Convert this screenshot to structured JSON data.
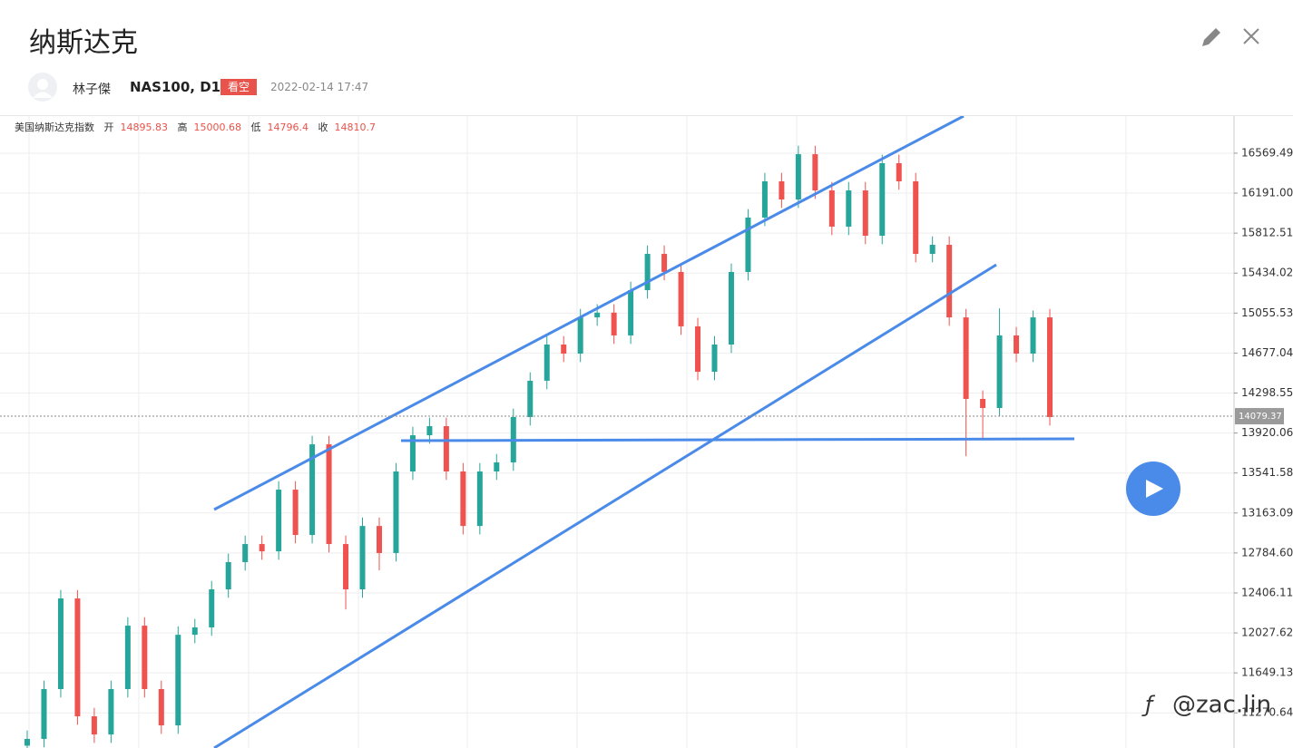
{
  "header": {
    "title": "纳斯达克",
    "author": "林子傑",
    "symbol": "NAS100, D1",
    "badge": "看空",
    "timestamp": "2022-02-14 17:47"
  },
  "legend": {
    "name": "美国纳斯达克指数",
    "labels": [
      "开",
      "高",
      "低",
      "收"
    ],
    "values": [
      14895.83,
      15000.68,
      14796.4,
      14810.7
    ]
  },
  "chart_data": {
    "type": "candlestick",
    "ylim": [
      10938,
      16921
    ],
    "yticks": [
      16569.49,
      {
        "value": 16191.0,
        "label": "16191.00"
      },
      15812.51,
      15434.02,
      15055.53,
      14677.04,
      14298.55,
      13920.06,
      13541.58,
      13163.09,
      {
        "value": 12784.6,
        "label": "12784.60"
      },
      12406.11,
      12027.62,
      11649.13,
      11270.64
    ],
    "grid": true,
    "up_color": "#26a69a",
    "down_color": "#ef5350",
    "last_price": 14079.37,
    "open": [
      10960,
      11024,
      11496,
      12354,
      11238,
      11066,
      11496,
      12096,
      11496,
      11152,
      12010,
      12080,
      12440,
      12698,
      12869,
      12800,
      13384,
      12955,
      13813,
      12869,
      12440,
      13040,
      12784,
      13556,
      13899,
      13985,
      13556,
      13040,
      13556,
      13642,
      14071,
      14415,
      14758,
      14672,
      15015,
      15060,
      14844,
      15273,
      15616,
      15445,
      14930,
      14500,
      14758,
      15445,
      15960,
      16303,
      16131,
      16560,
      16217,
      15874,
      16217,
      15788,
      16475,
      16303,
      15616,
      15702,
      15015,
      14243,
      14157,
      14844,
      14672,
      15015
    ],
    "high": [
      11104,
      11576,
      12434,
      12434,
      11318,
      11576,
      12176,
      12176,
      11576,
      12090,
      12160,
      12520,
      12778,
      12949,
      12949,
      13464,
      13464,
      13893,
      13893,
      12949,
      13120,
      13120,
      13636,
      13979,
      14065,
      14065,
      13636,
      13636,
      13722,
      14151,
      14495,
      14838,
      14838,
      15095,
      15140,
      15140,
      15353,
      15696,
      15696,
      15525,
      15010,
      14838,
      15525,
      16040,
      16383,
      16383,
      16640,
      16640,
      16297,
      16297,
      16297,
      16555,
      16555,
      16383,
      15782,
      15782,
      15095,
      14323,
      15100,
      14924,
      15080,
      15095
    ],
    "low": [
      10880,
      10944,
      11416,
      11158,
      10986,
      10986,
      11416,
      11416,
      11072,
      11072,
      11930,
      12000,
      12360,
      12618,
      12720,
      12720,
      12875,
      12875,
      12789,
      12250,
      12360,
      12620,
      12704,
      13476,
      13819,
      13476,
      12960,
      12960,
      13476,
      13562,
      13991,
      14335,
      14592,
      14592,
      14935,
      14764,
      14764,
      15193,
      15365,
      14850,
      14420,
      14420,
      14678,
      15365,
      15880,
      16051,
      16051,
      16137,
      15794,
      15794,
      15708,
      15708,
      16223,
      15536,
      15536,
      14935,
      13700,
      13860,
      14077,
      14592,
      14592,
      13991
    ],
    "close": [
      11024,
      11496,
      12354,
      11238,
      11066,
      11496,
      12096,
      11496,
      11152,
      12010,
      12080,
      12440,
      12698,
      12869,
      12800,
      13384,
      12955,
      13813,
      12869,
      12440,
      13040,
      12784,
      13556,
      13899,
      13985,
      13556,
      13040,
      13556,
      13642,
      14071,
      14415,
      14758,
      14672,
      15015,
      15060,
      14844,
      15273,
      15616,
      15445,
      14930,
      14500,
      14758,
      15445,
      15960,
      16303,
      16131,
      16560,
      16217,
      15874,
      16217,
      15788,
      16475,
      16303,
      15616,
      15702,
      15015,
      14243,
      14157,
      14844,
      14672,
      15015,
      14071
    ]
  },
  "watermark": "@zac.lin"
}
